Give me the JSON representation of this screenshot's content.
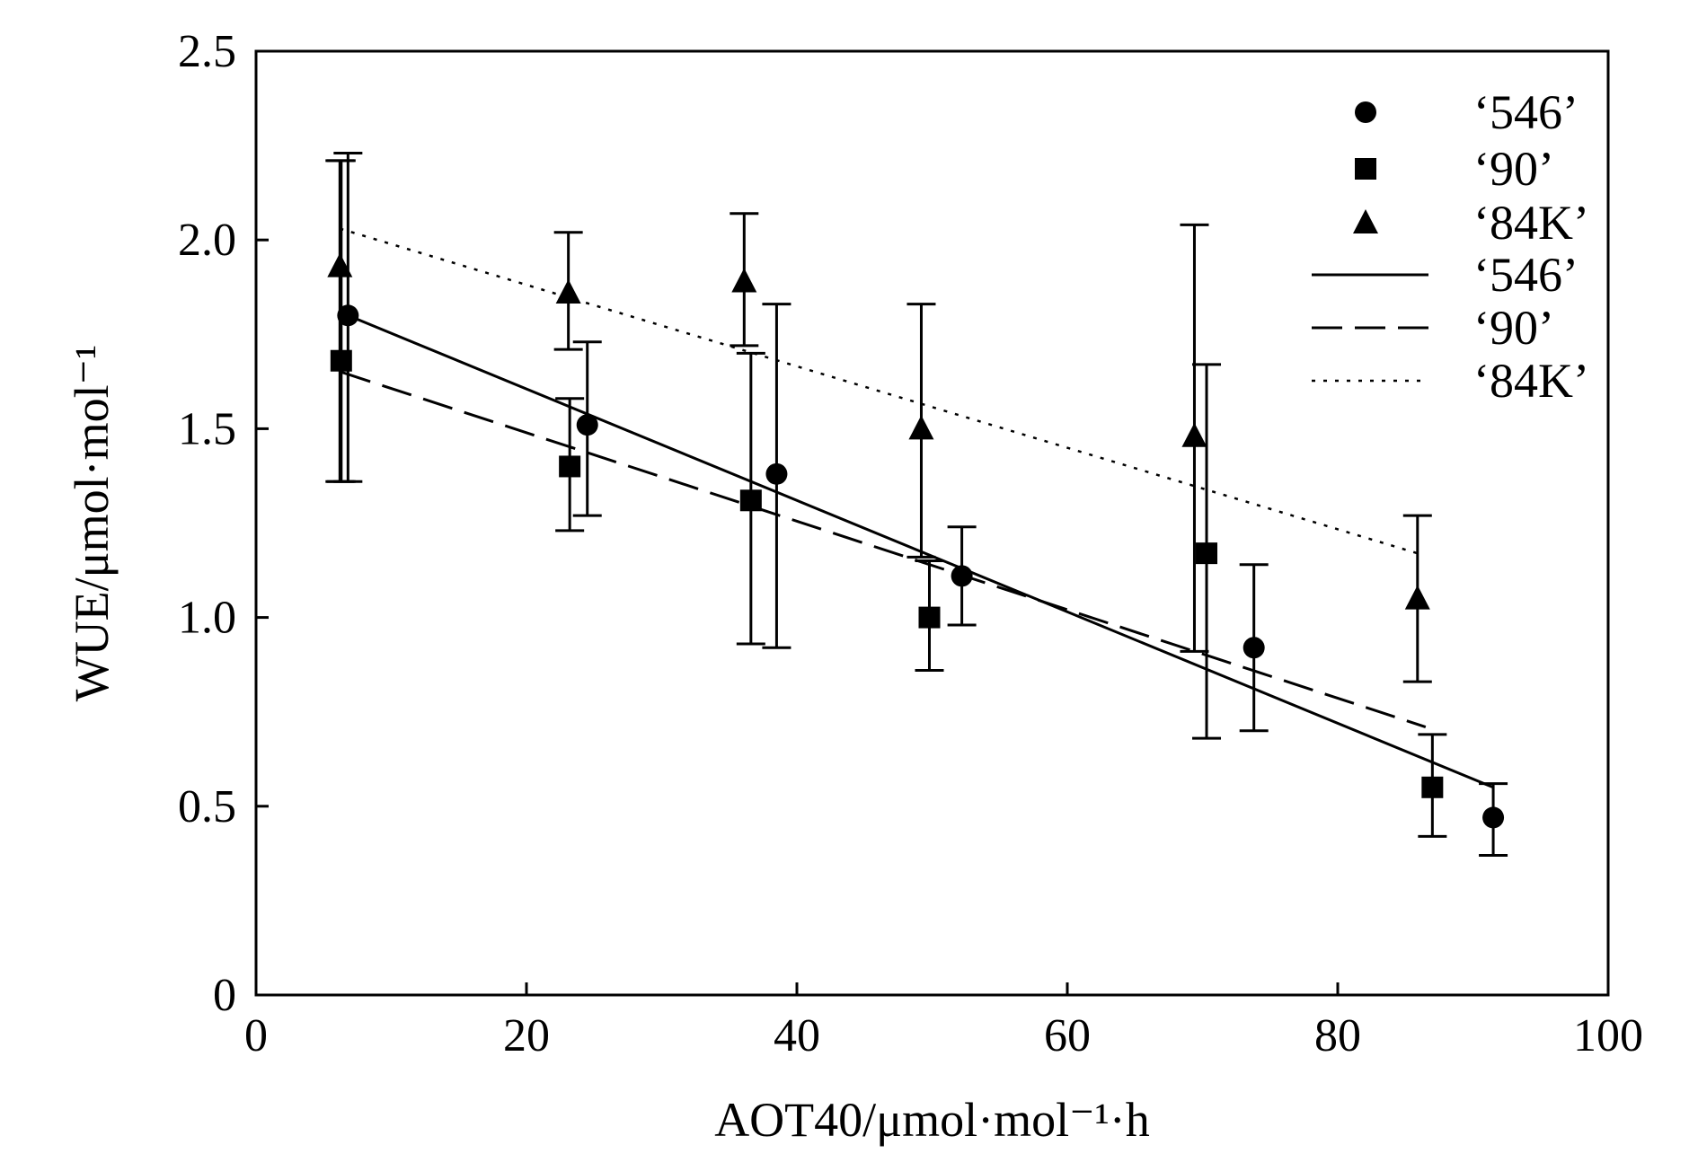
{
  "chart_data": {
    "type": "scatter",
    "title": "",
    "xlabel": "AOT40/μmol·mol⁻¹·h",
    "ylabel": "WUE/μmol·mol⁻¹",
    "xlim": [
      0,
      100
    ],
    "ylim": [
      0,
      2.5
    ],
    "x_ticks": [
      "0",
      "20",
      "40",
      "60",
      "80",
      "100"
    ],
    "y_ticks": [
      "0",
      "0.5",
      "1.0",
      "1.5",
      "2.0",
      "2.5"
    ],
    "grid": false,
    "legend_position": "top-right",
    "series": [
      {
        "name": "‘546’",
        "marker": "circle",
        "points": [
          {
            "x": 6.8,
            "y": 1.8,
            "err_low": 1.36,
            "err_high": 2.23
          },
          {
            "x": 24.5,
            "y": 1.51,
            "err_low": 1.27,
            "err_high": 1.73
          },
          {
            "x": 38.5,
            "y": 1.38,
            "err_low": 0.92,
            "err_high": 1.83
          },
          {
            "x": 52.2,
            "y": 1.11,
            "err_low": 0.98,
            "err_high": 1.24
          },
          {
            "x": 73.8,
            "y": 0.92,
            "err_low": 0.7,
            "err_high": 1.14
          },
          {
            "x": 91.5,
            "y": 0.47,
            "err_low": 0.37,
            "err_high": 0.56
          }
        ]
      },
      {
        "name": "‘90’",
        "marker": "square",
        "points": [
          {
            "x": 6.3,
            "y": 1.68,
            "err_low": 1.36,
            "err_high": 2.21
          },
          {
            "x": 23.2,
            "y": 1.4,
            "err_low": 1.23,
            "err_high": 1.58
          },
          {
            "x": 36.6,
            "y": 1.31,
            "err_low": 0.93,
            "err_high": 1.7
          },
          {
            "x": 49.8,
            "y": 1.0,
            "err_low": 0.86,
            "err_high": 1.15
          },
          {
            "x": 70.3,
            "y": 1.17,
            "err_low": 0.68,
            "err_high": 1.67
          },
          {
            "x": 87.0,
            "y": 0.55,
            "err_low": 0.42,
            "err_high": 0.69
          }
        ]
      },
      {
        "name": "‘84K’",
        "marker": "triangle",
        "points": [
          {
            "x": 6.2,
            "y": 1.93,
            "err_low": 1.36,
            "err_high": 2.21
          },
          {
            "x": 23.1,
            "y": 1.86,
            "err_low": 1.71,
            "err_high": 2.02
          },
          {
            "x": 36.1,
            "y": 1.89,
            "err_low": 1.72,
            "err_high": 2.07
          },
          {
            "x": 49.2,
            "y": 1.5,
            "err_low": 1.16,
            "err_high": 1.83
          },
          {
            "x": 69.4,
            "y": 1.48,
            "err_low": 0.91,
            "err_high": 2.04
          },
          {
            "x": 85.9,
            "y": 1.05,
            "err_low": 0.83,
            "err_high": 1.27
          }
        ]
      }
    ],
    "fit_lines": [
      {
        "name": "‘546’",
        "style": "solid",
        "x": [
          6.8,
          91.5
        ],
        "y": [
          1.8,
          0.55
        ]
      },
      {
        "name": "‘90’",
        "style": "dashed",
        "x": [
          6.3,
          86.5
        ],
        "y": [
          1.65,
          0.71
        ]
      },
      {
        "name": "‘84K’",
        "style": "dotted",
        "x": [
          6.2,
          85.9
        ],
        "y": [
          2.03,
          1.17
        ]
      }
    ]
  }
}
